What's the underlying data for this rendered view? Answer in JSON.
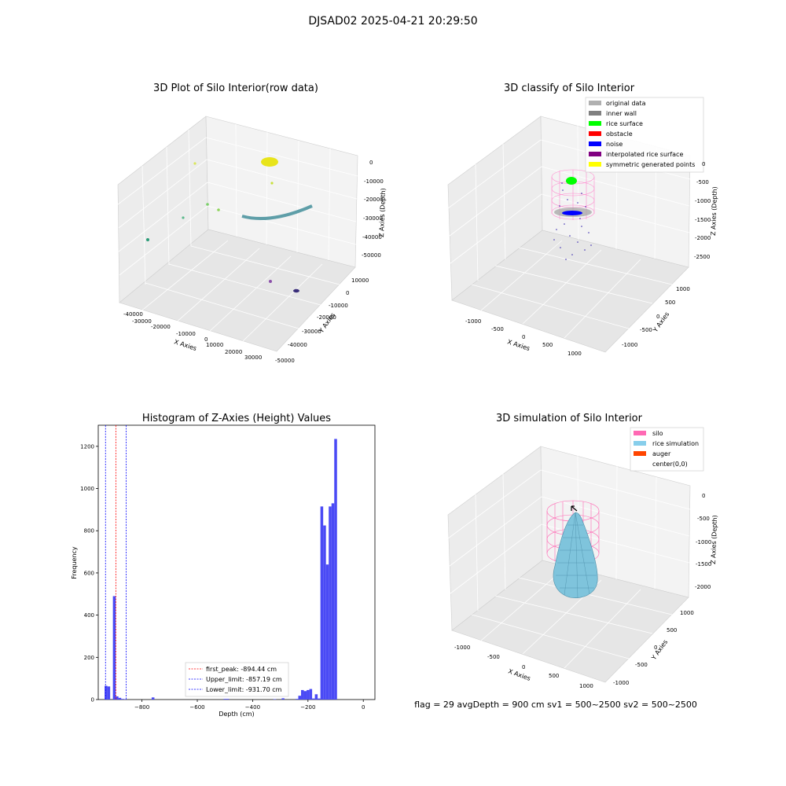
{
  "figure": {
    "suptitle": "DJSAD02 2025-04-21 20:29:50",
    "footer": "flag = 29   avgDepth = 900 cm   sv1 = 500~2500   sv2 = 500~2500"
  },
  "chart_data": [
    {
      "type": "scatter",
      "title": "3D Plot of Silo Interior(row data)",
      "xlabel": "X Axies",
      "ylabel": "Y Axies",
      "zlabel": "Z Axies (Depth)",
      "xticks": [
        "-40000",
        "-30000",
        "-20000",
        "-10000",
        "0",
        "10000",
        "20000",
        "30000"
      ],
      "yticks": [
        "-50000",
        "-40000",
        "-30000",
        "-20000",
        "-10000",
        "0",
        "10000"
      ],
      "zticks": [
        "0",
        "-10000",
        "-20000",
        "-30000",
        "-40000",
        "-50000"
      ],
      "grid": true
    },
    {
      "type": "scatter",
      "title": "3D classify of Silo Interior",
      "xlabel": "X Axies",
      "ylabel": "Y Axies",
      "zlabel": "Z Axies (Depth)",
      "xticks": [
        "-1000",
        "-500",
        "0",
        "500",
        "1000"
      ],
      "yticks": [
        "-1000",
        "-500",
        "0",
        "500",
        "1000"
      ],
      "zticks": [
        "0",
        "-500",
        "-1000",
        "-1500",
        "-2000",
        "-2500"
      ],
      "legend_position": "top-right",
      "legend": [
        {
          "label": "original data",
          "color": "#b0b0b0"
        },
        {
          "label": "inner wall",
          "color": "#808080"
        },
        {
          "label": "rice surface",
          "color": "#00ff00"
        },
        {
          "label": "obstacle",
          "color": "#ff0000"
        },
        {
          "label": "noise",
          "color": "#0000ff"
        },
        {
          "label": "interpolated rice surface",
          "color": "#800080"
        },
        {
          "label": "symmetric generated points",
          "color": "#ffff00"
        }
      ],
      "grid": true
    },
    {
      "type": "bar",
      "title": "Histogram of Z-Axies (Height) Values",
      "xlabel": "Depth (cm)",
      "ylabel": "Frequency",
      "xlim": [
        -958,
        42
      ],
      "ylim": [
        0,
        1300
      ],
      "xticks": [
        -800,
        -600,
        -400,
        -200,
        0
      ],
      "yticks": [
        0,
        200,
        400,
        600,
        800,
        1000,
        1200
      ],
      "bin_width": 10,
      "bins": [
        {
          "x0": -935,
          "v": 65
        },
        {
          "x0": -925,
          "v": 62
        },
        {
          "x0": -915,
          "v": 0
        },
        {
          "x0": -905,
          "v": 490
        },
        {
          "x0": -895,
          "v": 15
        },
        {
          "x0": -885,
          "v": 8
        },
        {
          "x0": -875,
          "v": 3
        },
        {
          "x0": -865,
          "v": 2
        },
        {
          "x0": -765,
          "v": 10
        },
        {
          "x0": -505,
          "v": 3
        },
        {
          "x0": -495,
          "v": 3
        },
        {
          "x0": -325,
          "v": 2
        },
        {
          "x0": -295,
          "v": 6
        },
        {
          "x0": -245,
          "v": 3
        },
        {
          "x0": -235,
          "v": 18
        },
        {
          "x0": -225,
          "v": 45
        },
        {
          "x0": -215,
          "v": 40
        },
        {
          "x0": -205,
          "v": 45
        },
        {
          "x0": -195,
          "v": 50
        },
        {
          "x0": -185,
          "v": 5
        },
        {
          "x0": -175,
          "v": 25
        },
        {
          "x0": -165,
          "v": 5
        },
        {
          "x0": -155,
          "v": 915
        },
        {
          "x0": -145,
          "v": 825
        },
        {
          "x0": -135,
          "v": 640
        },
        {
          "x0": -125,
          "v": 915
        },
        {
          "x0": -115,
          "v": 930
        },
        {
          "x0": -105,
          "v": 1235
        }
      ],
      "bar_color": "#4a4af5",
      "vlines": [
        {
          "x": -894.44,
          "label": "first_peak: -894.44 cm",
          "color": "#ff0000"
        },
        {
          "x": -857.19,
          "label": "Upper_limit: -857.19 cm",
          "color": "#0000ff"
        },
        {
          "x": -931.7,
          "label": "Lower_limit: -931.70 cm",
          "color": "#0000ff"
        }
      ],
      "legend_position": "lower-center",
      "grid": false
    },
    {
      "type": "area",
      "title": "3D simulation of Silo Interior",
      "xlabel": "X Axies",
      "ylabel": "Y Axies",
      "zlabel": "Z Axies (Depth)",
      "xticks": [
        "-1000",
        "-500",
        "0",
        "500",
        "1000"
      ],
      "yticks": [
        "-1000",
        "-500",
        "0",
        "500",
        "1000"
      ],
      "zticks": [
        "0",
        "-500",
        "-1000",
        "-1500",
        "-2000"
      ],
      "legend_position": "top-right",
      "legend": [
        {
          "label": "silo",
          "color": "#ff69b4"
        },
        {
          "label": "rice simulation",
          "color": "#87ceeb"
        },
        {
          "label": "auger",
          "color": "#ff4500"
        },
        {
          "label": "center(0,0)",
          "color": ""
        }
      ],
      "grid": true
    }
  ]
}
